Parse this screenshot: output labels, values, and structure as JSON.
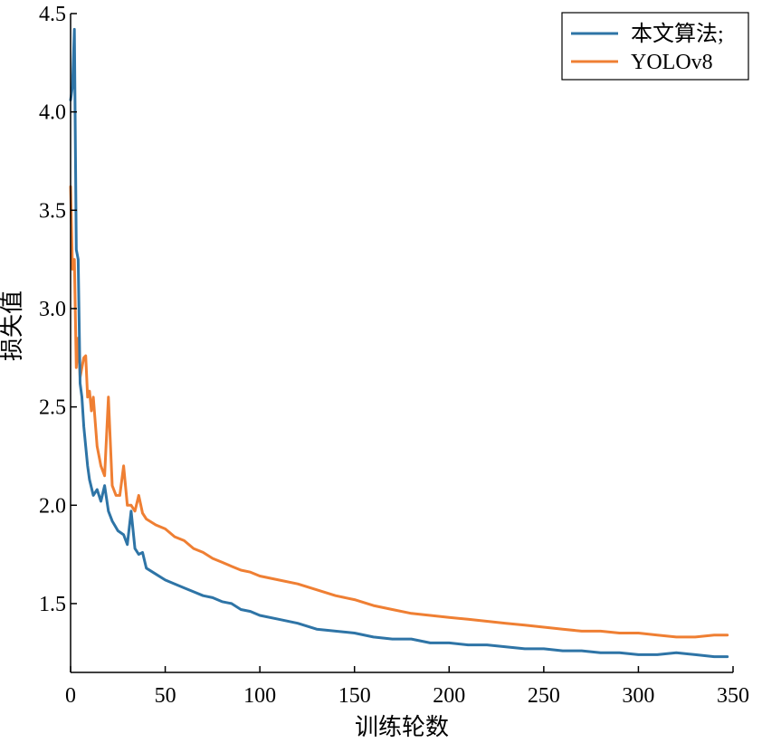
{
  "chart_data": {
    "type": "line",
    "title": "",
    "xlabel": "训练轮数",
    "ylabel": "损失值",
    "xlim": [
      0,
      350
    ],
    "ylim": [
      1.15,
      4.5
    ],
    "xticks": [
      0,
      50,
      100,
      150,
      200,
      250,
      300,
      350
    ],
    "yticks": [
      1.5,
      2.0,
      2.5,
      3.0,
      3.5,
      4.0,
      4.5
    ],
    "xtick_labels": [
      "0",
      "50",
      "100",
      "150",
      "200",
      "250",
      "300",
      "350"
    ],
    "ytick_labels": [
      "1.5",
      "2.0",
      "2.5",
      "3.0",
      "3.5",
      "4.0",
      "4.5"
    ],
    "grid": false,
    "legend_position": "top-right",
    "series": [
      {
        "name": "本文算法;",
        "color": "#2e74a6",
        "x": [
          0,
          1,
          2,
          3,
          4,
          5,
          6,
          7,
          8,
          9,
          10,
          12,
          14,
          16,
          18,
          20,
          22,
          25,
          28,
          30,
          32,
          34,
          36,
          38,
          40,
          45,
          50,
          55,
          60,
          65,
          70,
          75,
          80,
          85,
          90,
          95,
          100,
          110,
          120,
          130,
          140,
          150,
          160,
          170,
          180,
          190,
          200,
          210,
          220,
          230,
          240,
          250,
          260,
          270,
          280,
          290,
          300,
          310,
          320,
          330,
          340,
          347
        ],
        "y": [
          4.06,
          4.13,
          4.42,
          3.3,
          3.25,
          2.62,
          2.55,
          2.4,
          2.3,
          2.2,
          2.13,
          2.05,
          2.08,
          2.02,
          2.1,
          1.97,
          1.92,
          1.87,
          1.85,
          1.8,
          1.97,
          1.78,
          1.75,
          1.76,
          1.68,
          1.65,
          1.62,
          1.6,
          1.58,
          1.56,
          1.54,
          1.53,
          1.51,
          1.5,
          1.47,
          1.46,
          1.44,
          1.42,
          1.4,
          1.37,
          1.36,
          1.35,
          1.33,
          1.32,
          1.32,
          1.3,
          1.3,
          1.29,
          1.29,
          1.28,
          1.27,
          1.27,
          1.26,
          1.26,
          1.25,
          1.25,
          1.24,
          1.24,
          1.25,
          1.24,
          1.23,
          1.23
        ]
      },
      {
        "name": "YOLOv8",
        "color": "#ef7f33",
        "x": [
          0,
          1,
          2,
          3,
          4,
          5,
          6,
          7,
          8,
          9,
          10,
          11,
          12,
          14,
          16,
          18,
          20,
          22,
          24,
          26,
          28,
          30,
          32,
          34,
          36,
          38,
          40,
          45,
          50,
          55,
          60,
          65,
          70,
          75,
          80,
          85,
          90,
          95,
          100,
          110,
          120,
          130,
          140,
          150,
          160,
          170,
          180,
          190,
          200,
          210,
          220,
          230,
          240,
          250,
          260,
          270,
          280,
          290,
          300,
          310,
          320,
          330,
          340,
          347
        ],
        "y": [
          3.62,
          3.2,
          3.25,
          2.7,
          2.85,
          2.65,
          2.7,
          2.75,
          2.76,
          2.55,
          2.58,
          2.48,
          2.55,
          2.3,
          2.2,
          2.15,
          2.55,
          2.1,
          2.05,
          2.05,
          2.2,
          2.0,
          2.0,
          1.97,
          2.05,
          1.96,
          1.93,
          1.9,
          1.88,
          1.84,
          1.82,
          1.78,
          1.76,
          1.73,
          1.71,
          1.69,
          1.67,
          1.66,
          1.64,
          1.62,
          1.6,
          1.57,
          1.54,
          1.52,
          1.49,
          1.47,
          1.45,
          1.44,
          1.43,
          1.42,
          1.41,
          1.4,
          1.39,
          1.38,
          1.37,
          1.36,
          1.36,
          1.35,
          1.35,
          1.34,
          1.33,
          1.33,
          1.34,
          1.34
        ]
      }
    ]
  }
}
